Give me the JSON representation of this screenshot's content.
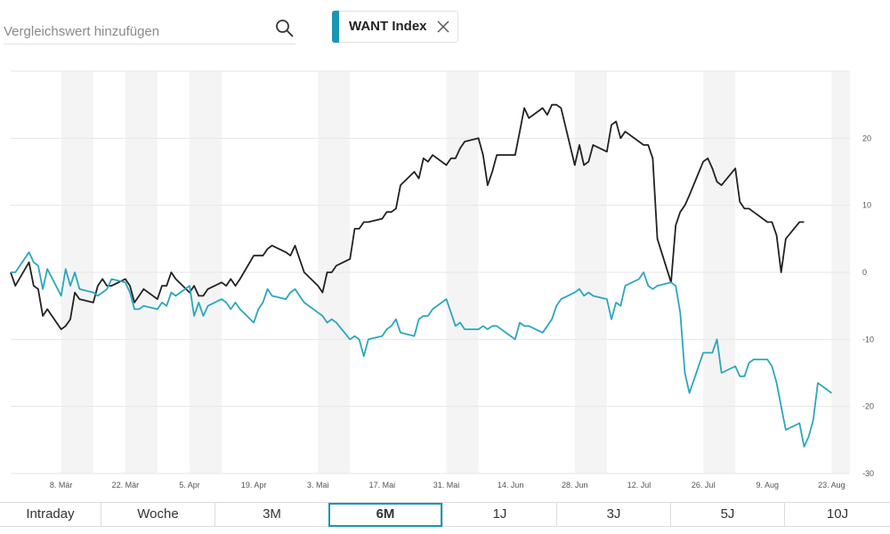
{
  "search": {
    "placeholder": "Vergleichswert hinzufügen",
    "value": "",
    "icon": "search-icon"
  },
  "comparison": {
    "label": "WANT Index",
    "color": "#1a95b8",
    "close_icon": "close-icon"
  },
  "colors": {
    "main_series": "#222222",
    "comparison_series": "#2aa7bf",
    "band": "#f4f4f4",
    "grid": "#e6e6e6"
  },
  "tabs": [
    {
      "label": "Intraday",
      "active": false
    },
    {
      "label": "Woche",
      "active": false
    },
    {
      "label": "3M",
      "active": false
    },
    {
      "label": "6M",
      "active": true
    },
    {
      "label": "1J",
      "active": false
    },
    {
      "label": "3J",
      "active": false
    },
    {
      "label": "5J",
      "active": false
    },
    {
      "label": "10J",
      "active": false
    }
  ],
  "chart_data": {
    "type": "line",
    "title": "",
    "xlabel": "",
    "ylabel": "",
    "ylim": [
      -30,
      30
    ],
    "yticks": [
      20,
      10,
      0,
      -10,
      -20,
      -30
    ],
    "xlim": [
      "2021-02-25",
      "2021-08-27"
    ],
    "xticks": [
      {
        "date": "2021-03-08",
        "label": "8. Mär"
      },
      {
        "date": "2021-03-22",
        "label": "22. Mär"
      },
      {
        "date": "2021-04-05",
        "label": "5. Apr"
      },
      {
        "date": "2021-04-19",
        "label": "19. Apr"
      },
      {
        "date": "2021-05-03",
        "label": "3. Mai"
      },
      {
        "date": "2021-05-17",
        "label": "17. Mai"
      },
      {
        "date": "2021-05-31",
        "label": "31. Mai"
      },
      {
        "date": "2021-06-14",
        "label": "14. Jun"
      },
      {
        "date": "2021-06-28",
        "label": "28. Jun"
      },
      {
        "date": "2021-07-12",
        "label": "12. Jul"
      },
      {
        "date": "2021-07-26",
        "label": "26. Jul"
      },
      {
        "date": "2021-08-09",
        "label": "9. Aug"
      },
      {
        "date": "2021-08-23",
        "label": "23. Aug"
      }
    ],
    "shaded_weeks": [
      "2021-03-08",
      "2021-03-22",
      "2021-04-05",
      "2021-05-03",
      "2021-05-31",
      "2021-06-28",
      "2021-07-26",
      "2021-08-23"
    ],
    "grid": true,
    "legend": "none",
    "series": [
      {
        "key": "main",
        "points": [
          [
            "2021-02-25",
            0
          ],
          [
            "2021-02-26",
            -2
          ],
          [
            "2021-03-01",
            1.5
          ],
          [
            "2021-03-02",
            -2
          ],
          [
            "2021-03-03",
            -2.5
          ],
          [
            "2021-03-04",
            -6.5
          ],
          [
            "2021-03-05",
            -5.5
          ],
          [
            "2021-03-08",
            -8.5
          ],
          [
            "2021-03-09",
            -8
          ],
          [
            "2021-03-10",
            -7
          ],
          [
            "2021-03-11",
            -3
          ],
          [
            "2021-03-12",
            -4
          ],
          [
            "2021-03-15",
            -4.5
          ],
          [
            "2021-03-16",
            -2
          ],
          [
            "2021-03-17",
            -1
          ],
          [
            "2021-03-18",
            -2
          ],
          [
            "2021-03-19",
            -2
          ],
          [
            "2021-03-22",
            -1
          ],
          [
            "2021-03-23",
            -2
          ],
          [
            "2021-03-24",
            -4.5
          ],
          [
            "2021-03-25",
            -3.5
          ],
          [
            "2021-03-26",
            -2.5
          ],
          [
            "2021-03-29",
            -4
          ],
          [
            "2021-03-30",
            -2
          ],
          [
            "2021-03-31",
            -2
          ],
          [
            "2021-04-01",
            0
          ],
          [
            "2021-04-02",
            -1
          ],
          [
            "2021-04-05",
            -3
          ],
          [
            "2021-04-06",
            -2
          ],
          [
            "2021-04-07",
            -3.5
          ],
          [
            "2021-04-08",
            -3.5
          ],
          [
            "2021-04-09",
            -2.5
          ],
          [
            "2021-04-12",
            -1.5
          ],
          [
            "2021-04-13",
            -2
          ],
          [
            "2021-04-14",
            -1
          ],
          [
            "2021-04-15",
            -2
          ],
          [
            "2021-04-16",
            -1
          ],
          [
            "2021-04-19",
            2.5
          ],
          [
            "2021-04-20",
            2.5
          ],
          [
            "2021-04-21",
            2.5
          ],
          [
            "2021-04-22",
            3.5
          ],
          [
            "2021-04-23",
            4
          ],
          [
            "2021-04-26",
            3
          ],
          [
            "2021-04-27",
            2.5
          ],
          [
            "2021-04-28",
            4
          ],
          [
            "2021-04-29",
            2
          ],
          [
            "2021-04-30",
            0
          ],
          [
            "2021-05-03",
            -2
          ],
          [
            "2021-05-04",
            -3
          ],
          [
            "2021-05-05",
            0
          ],
          [
            "2021-05-06",
            0
          ],
          [
            "2021-05-07",
            1
          ],
          [
            "2021-05-10",
            2
          ],
          [
            "2021-05-11",
            6.5
          ],
          [
            "2021-05-12",
            6.5
          ],
          [
            "2021-05-13",
            7.5
          ],
          [
            "2021-05-14",
            7.5
          ],
          [
            "2021-05-17",
            8
          ],
          [
            "2021-05-18",
            9
          ],
          [
            "2021-05-19",
            9
          ],
          [
            "2021-05-20",
            9.5
          ],
          [
            "2021-05-21",
            13
          ],
          [
            "2021-05-24",
            15
          ],
          [
            "2021-05-25",
            14
          ],
          [
            "2021-05-26",
            17
          ],
          [
            "2021-05-27",
            16.5
          ],
          [
            "2021-05-28",
            17.5
          ],
          [
            "2021-05-31",
            16
          ],
          [
            "2021-06-01",
            17
          ],
          [
            "2021-06-02",
            17
          ],
          [
            "2021-06-03",
            18.5
          ],
          [
            "2021-06-04",
            19.5
          ],
          [
            "2021-06-07",
            20
          ],
          [
            "2021-06-08",
            17.5
          ],
          [
            "2021-06-09",
            13
          ],
          [
            "2021-06-10",
            15
          ],
          [
            "2021-06-11",
            17.5
          ],
          [
            "2021-06-14",
            17.5
          ],
          [
            "2021-06-15",
            17.5
          ],
          [
            "2021-06-16",
            21
          ],
          [
            "2021-06-17",
            24.5
          ],
          [
            "2021-06-18",
            23
          ],
          [
            "2021-06-21",
            24.5
          ],
          [
            "2021-06-22",
            23.5
          ],
          [
            "2021-06-23",
            25
          ],
          [
            "2021-06-24",
            25
          ],
          [
            "2021-06-25",
            24.5
          ],
          [
            "2021-06-28",
            16
          ],
          [
            "2021-06-29",
            19
          ],
          [
            "2021-06-30",
            16
          ],
          [
            "2021-07-01",
            16.5
          ],
          [
            "2021-07-02",
            19
          ],
          [
            "2021-07-05",
            18
          ],
          [
            "2021-07-06",
            22
          ],
          [
            "2021-07-07",
            22.5
          ],
          [
            "2021-07-08",
            20
          ],
          [
            "2021-07-09",
            21
          ],
          [
            "2021-07-12",
            19.5
          ],
          [
            "2021-07-13",
            19
          ],
          [
            "2021-07-14",
            19
          ],
          [
            "2021-07-15",
            17
          ],
          [
            "2021-07-16",
            5
          ],
          [
            "2021-07-19",
            -1.5
          ],
          [
            "2021-07-20",
            7
          ],
          [
            "2021-07-21",
            9
          ],
          [
            "2021-07-22",
            10
          ],
          [
            "2021-07-23",
            11.5
          ],
          [
            "2021-07-26",
            16.5
          ],
          [
            "2021-07-27",
            17
          ],
          [
            "2021-07-28",
            15.5
          ],
          [
            "2021-07-29",
            13.5
          ],
          [
            "2021-07-30",
            13
          ],
          [
            "2021-08-02",
            15.5
          ],
          [
            "2021-08-03",
            10.5
          ],
          [
            "2021-08-04",
            9.5
          ],
          [
            "2021-08-05",
            9.5
          ],
          [
            "2021-08-06",
            9
          ],
          [
            "2021-08-09",
            7.5
          ],
          [
            "2021-08-10",
            7.5
          ],
          [
            "2021-08-11",
            5.5
          ],
          [
            "2021-08-12",
            0
          ],
          [
            "2021-08-13",
            5
          ],
          [
            "2021-08-16",
            7.5
          ],
          [
            "2021-08-17",
            7.5
          ]
        ]
      },
      {
        "key": "comparison",
        "points": [
          [
            "2021-02-25",
            0
          ],
          [
            "2021-02-26",
            0
          ],
          [
            "2021-03-01",
            3
          ],
          [
            "2021-03-02",
            1.5
          ],
          [
            "2021-03-03",
            1
          ],
          [
            "2021-03-04",
            -2.5
          ],
          [
            "2021-03-05",
            0.5
          ],
          [
            "2021-03-08",
            -3.5
          ],
          [
            "2021-03-09",
            0.5
          ],
          [
            "2021-03-10",
            -2
          ],
          [
            "2021-03-11",
            0
          ],
          [
            "2021-03-12",
            -2.5
          ],
          [
            "2021-03-15",
            -3
          ],
          [
            "2021-03-16",
            -3.5
          ],
          [
            "2021-03-17",
            -3
          ],
          [
            "2021-03-18",
            -2.5
          ],
          [
            "2021-03-19",
            -1
          ],
          [
            "2021-03-22",
            -1.5
          ],
          [
            "2021-03-23",
            -3
          ],
          [
            "2021-03-24",
            -5.5
          ],
          [
            "2021-03-25",
            -5.5
          ],
          [
            "2021-03-26",
            -5
          ],
          [
            "2021-03-29",
            -5.5
          ],
          [
            "2021-03-30",
            -4.5
          ],
          [
            "2021-03-31",
            -5
          ],
          [
            "2021-04-01",
            -3
          ],
          [
            "2021-04-02",
            -3.5
          ],
          [
            "2021-04-05",
            -2
          ],
          [
            "2021-04-06",
            -6.5
          ],
          [
            "2021-04-07",
            -4.5
          ],
          [
            "2021-04-08",
            -6.5
          ],
          [
            "2021-04-09",
            -5
          ],
          [
            "2021-04-12",
            -4
          ],
          [
            "2021-04-13",
            -4.5
          ],
          [
            "2021-04-14",
            -5.5
          ],
          [
            "2021-04-15",
            -4.5
          ],
          [
            "2021-04-16",
            -5.5
          ],
          [
            "2021-04-19",
            -7.5
          ],
          [
            "2021-04-20",
            -5.5
          ],
          [
            "2021-04-21",
            -4.5
          ],
          [
            "2021-04-22",
            -2.5
          ],
          [
            "2021-04-23",
            -3.5
          ],
          [
            "2021-04-26",
            -4
          ],
          [
            "2021-04-27",
            -3
          ],
          [
            "2021-04-28",
            -2.5
          ],
          [
            "2021-04-29",
            -3.5
          ],
          [
            "2021-04-30",
            -4.5
          ],
          [
            "2021-05-03",
            -6
          ],
          [
            "2021-05-04",
            -6.5
          ],
          [
            "2021-05-05",
            -7.5
          ],
          [
            "2021-05-06",
            -7
          ],
          [
            "2021-05-07",
            -7.5
          ],
          [
            "2021-05-10",
            -10
          ],
          [
            "2021-05-11",
            -9.5
          ],
          [
            "2021-05-12",
            -10
          ],
          [
            "2021-05-13",
            -12.5
          ],
          [
            "2021-05-14",
            -10
          ],
          [
            "2021-05-17",
            -9.5
          ],
          [
            "2021-05-18",
            -8.5
          ],
          [
            "2021-05-19",
            -8
          ],
          [
            "2021-05-20",
            -7
          ],
          [
            "2021-05-21",
            -9
          ],
          [
            "2021-05-24",
            -9.5
          ],
          [
            "2021-05-25",
            -7
          ],
          [
            "2021-05-26",
            -6.5
          ],
          [
            "2021-05-27",
            -6.5
          ],
          [
            "2021-05-28",
            -5.5
          ],
          [
            "2021-05-31",
            -4
          ],
          [
            "2021-06-01",
            -6
          ],
          [
            "2021-06-02",
            -8
          ],
          [
            "2021-06-03",
            -7.5
          ],
          [
            "2021-06-04",
            -8.5
          ],
          [
            "2021-06-07",
            -8.5
          ],
          [
            "2021-06-08",
            -8
          ],
          [
            "2021-06-09",
            -8.5
          ],
          [
            "2021-06-10",
            -8
          ],
          [
            "2021-06-11",
            -8
          ],
          [
            "2021-06-14",
            -9.5
          ],
          [
            "2021-06-15",
            -10
          ],
          [
            "2021-06-16",
            -7.5
          ],
          [
            "2021-06-17",
            -8
          ],
          [
            "2021-06-18",
            -8
          ],
          [
            "2021-06-21",
            -9
          ],
          [
            "2021-06-22",
            -8
          ],
          [
            "2021-06-23",
            -7
          ],
          [
            "2021-06-24",
            -5
          ],
          [
            "2021-06-25",
            -4
          ],
          [
            "2021-06-28",
            -3
          ],
          [
            "2021-06-29",
            -2.5
          ],
          [
            "2021-06-30",
            -3.5
          ],
          [
            "2021-07-01",
            -3
          ],
          [
            "2021-07-02",
            -3.5
          ],
          [
            "2021-07-05",
            -4
          ],
          [
            "2021-07-06",
            -7
          ],
          [
            "2021-07-07",
            -4.5
          ],
          [
            "2021-07-08",
            -5
          ],
          [
            "2021-07-09",
            -2
          ],
          [
            "2021-07-12",
            -1
          ],
          [
            "2021-07-13",
            0
          ],
          [
            "2021-07-14",
            -2
          ],
          [
            "2021-07-15",
            -2.5
          ],
          [
            "2021-07-16",
            -2
          ],
          [
            "2021-07-19",
            -1.5
          ],
          [
            "2021-07-20",
            -2
          ],
          [
            "2021-07-21",
            -6
          ],
          [
            "2021-07-22",
            -15
          ],
          [
            "2021-07-23",
            -18
          ],
          [
            "2021-07-26",
            -12
          ],
          [
            "2021-07-27",
            -12
          ],
          [
            "2021-07-28",
            -12
          ],
          [
            "2021-07-29",
            -10
          ],
          [
            "2021-07-30",
            -15
          ],
          [
            "2021-08-02",
            -14
          ],
          [
            "2021-08-03",
            -15.5
          ],
          [
            "2021-08-04",
            -15.5
          ],
          [
            "2021-08-05",
            -13.5
          ],
          [
            "2021-08-06",
            -13
          ],
          [
            "2021-08-09",
            -13
          ],
          [
            "2021-08-10",
            -14
          ],
          [
            "2021-08-11",
            -16.5
          ],
          [
            "2021-08-12",
            -20
          ],
          [
            "2021-08-13",
            -23.5
          ],
          [
            "2021-08-16",
            -22.5
          ],
          [
            "2021-08-17",
            -26
          ],
          [
            "2021-08-18",
            -24.5
          ],
          [
            "2021-08-19",
            -22
          ],
          [
            "2021-08-20",
            -16.5
          ],
          [
            "2021-08-23",
            -18
          ]
        ]
      }
    ]
  }
}
